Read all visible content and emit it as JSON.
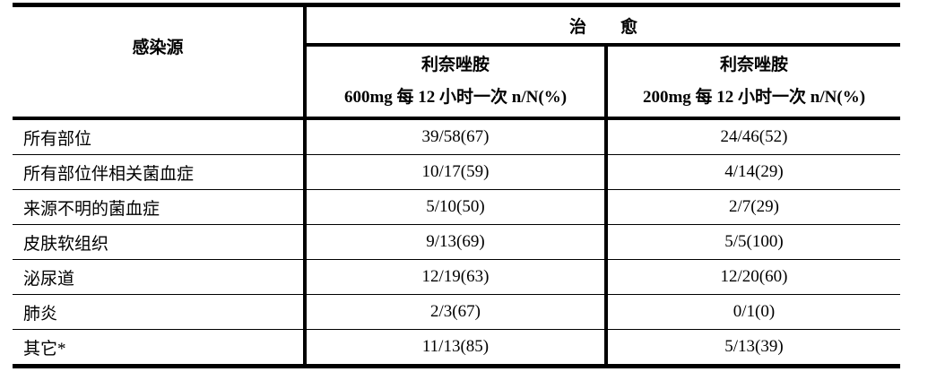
{
  "table": {
    "header": {
      "source_label": "感染源",
      "group_label": "治　　愈",
      "columns": [
        {
          "drug": "利奈唑胺",
          "dose": "600mg 每 12 小时一次 n/N(%)"
        },
        {
          "drug": "利奈唑胺",
          "dose": "200mg 每 12 小时一次 n/N(%)"
        }
      ]
    },
    "rows": [
      {
        "source": "所有部位",
        "col1": "39/58(67)",
        "col2": "24/46(52)"
      },
      {
        "source": "所有部位伴相关菌血症",
        "col1": "10/17(59)",
        "col2": "4/14(29)"
      },
      {
        "source": "来源不明的菌血症",
        "col1": "5/10(50)",
        "col2": "2/7(29)"
      },
      {
        "source": "皮肤软组织",
        "col1": "9/13(69)",
        "col2": "5/5(100)"
      },
      {
        "source": "泌尿道",
        "col1": "12/19(63)",
        "col2": "12/20(60)"
      },
      {
        "source": "肺炎",
        "col1": "2/3(67)",
        "col2": "0/1(0)"
      },
      {
        "source": "其它*",
        "col1": "11/13(85)",
        "col2": "5/13(39)"
      }
    ]
  }
}
